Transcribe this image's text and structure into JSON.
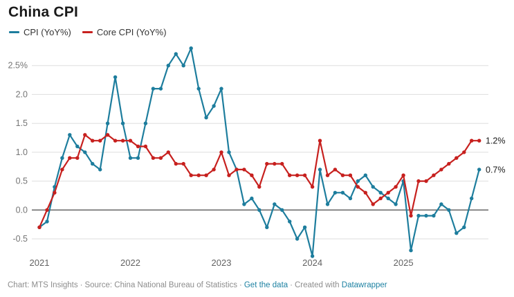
{
  "chart_data": {
    "type": "line",
    "title": "China CPI",
    "x_start": "2021-01",
    "x_end": "2025-11",
    "x_frequency": "monthly",
    "ylim": [
      -0.9,
      2.9
    ],
    "grid": true,
    "legend_position": "top-left",
    "y_ticks": [
      {
        "label": "2.5%",
        "value": 2.5
      },
      {
        "label": "2.0",
        "value": 2.0
      },
      {
        "label": "1.5",
        "value": 1.5
      },
      {
        "label": "1.0",
        "value": 1.0
      },
      {
        "label": "0.5",
        "value": 0.5
      },
      {
        "label": "0.0",
        "value": 0.0
      },
      {
        "label": "-0.5",
        "value": -0.5
      }
    ],
    "x_ticks": [
      {
        "label": "2021",
        "month_index": 0
      },
      {
        "label": "2022",
        "month_index": 12
      },
      {
        "label": "2023",
        "month_index": 24
      },
      {
        "label": "2024",
        "month_index": 36
      },
      {
        "label": "2025",
        "month_index": 48
      }
    ],
    "series": [
      {
        "id": "cpi",
        "name": "CPI (YoY%)",
        "color": "#1d7d9d",
        "end_label": "0.7%",
        "values": [
          -0.3,
          -0.2,
          0.4,
          0.9,
          1.3,
          1.1,
          1.0,
          0.8,
          0.7,
          1.5,
          2.3,
          1.5,
          0.9,
          0.9,
          1.5,
          2.1,
          2.1,
          2.5,
          2.7,
          2.5,
          2.8,
          2.1,
          1.6,
          1.8,
          2.1,
          1.0,
          0.7,
          0.1,
          0.2,
          0.0,
          -0.3,
          0.1,
          0.0,
          -0.2,
          -0.5,
          -0.3,
          -0.8,
          0.7,
          0.1,
          0.3,
          0.3,
          0.2,
          0.5,
          0.6,
          0.4,
          0.3,
          0.2,
          0.1,
          0.5,
          -0.7,
          -0.1,
          -0.1,
          -0.1,
          0.1,
          0.0,
          -0.4,
          -0.3,
          0.2,
          0.7
        ]
      },
      {
        "id": "core-cpi",
        "name": "Core CPI (YoY%)",
        "color": "#c7201e",
        "end_label": "1.2%",
        "values": [
          -0.3,
          0.0,
          0.3,
          0.7,
          0.9,
          0.9,
          1.3,
          1.2,
          1.2,
          1.3,
          1.2,
          1.2,
          1.2,
          1.1,
          1.1,
          0.9,
          0.9,
          1.0,
          0.8,
          0.8,
          0.6,
          0.6,
          0.6,
          0.7,
          1.0,
          0.6,
          0.7,
          0.7,
          0.6,
          0.4,
          0.8,
          0.8,
          0.8,
          0.6,
          0.6,
          0.6,
          0.4,
          1.2,
          0.6,
          0.7,
          0.6,
          0.6,
          0.4,
          0.3,
          0.1,
          0.2,
          0.3,
          0.4,
          0.6,
          -0.1,
          0.5,
          0.5,
          0.6,
          0.7,
          0.8,
          0.9,
          1.0,
          1.2,
          1.2
        ]
      }
    ],
    "colors": {
      "gridline": "#dedede",
      "zero_line": "#1a1a1a",
      "y_tick_text": "#757575",
      "x_tick_text": "#626262",
      "end_label_text": "#1a1a1a"
    }
  },
  "footer": {
    "chart_credit": "Chart: MTS Insights",
    "source": "Source: China National Bureau of Statistics",
    "get_data_label": "Get the data",
    "created_with": "Created with",
    "tool_name": "Datawrapper",
    "separator": "·"
  }
}
